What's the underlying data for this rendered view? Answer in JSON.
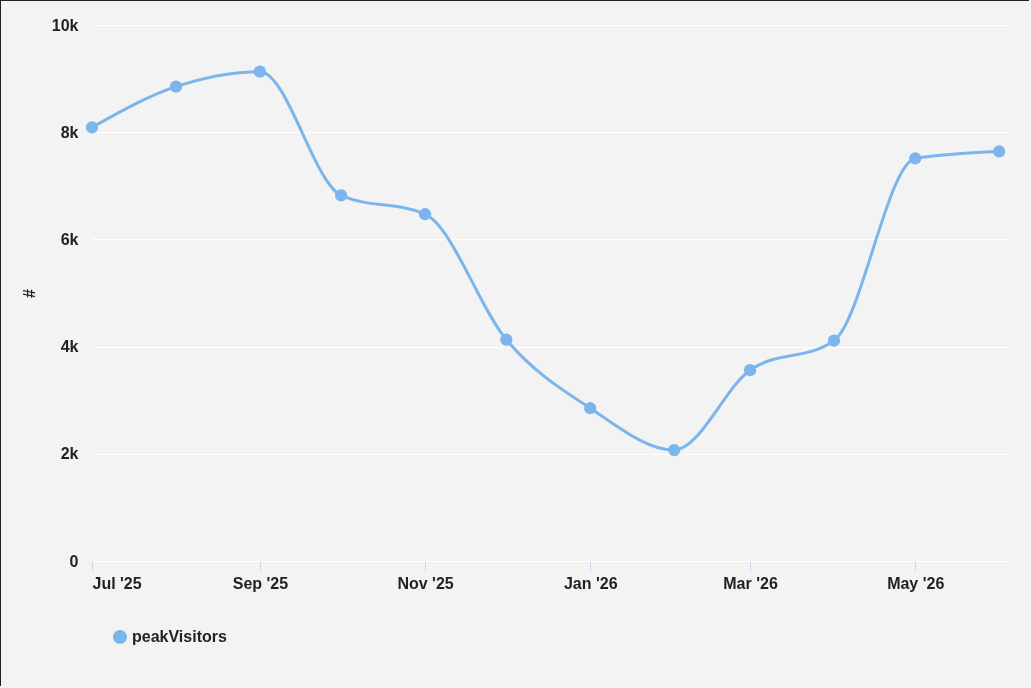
{
  "chart_data": {
    "type": "line",
    "ylabel": "#",
    "x": [
      "2025-07",
      "2025-08",
      "2025-09",
      "2025-10",
      "2025-11",
      "2025-12",
      "2026-01",
      "2026-02",
      "2026-03",
      "2026-04",
      "2026-05",
      "2026-06"
    ],
    "series": [
      {
        "name": "peakVisitors",
        "color": "#7cb5ec",
        "values": [
          8090,
          8850,
          9130,
          6820,
          6470,
          4130,
          2850,
          2070,
          3560,
          4110,
          7510,
          7640
        ]
      }
    ],
    "xlim": [
      "2025-07-01",
      "2026-06-05"
    ],
    "xticks": [
      {
        "value": "2025-07",
        "label": "Jul '25"
      },
      {
        "value": "2025-09",
        "label": "Sep '25"
      },
      {
        "value": "2025-11",
        "label": "Nov '25"
      },
      {
        "value": "2026-01",
        "label": "Jan '26"
      },
      {
        "value": "2026-03",
        "label": "Mar '26"
      },
      {
        "value": "2026-05",
        "label": "May '26"
      }
    ],
    "ylim": [
      0,
      10000
    ],
    "yticks": [
      0,
      {
        "value": 2000,
        "label": "2k"
      },
      {
        "value": 4000,
        "label": "4k"
      },
      {
        "value": 6000,
        "label": "6k"
      },
      {
        "value": 8000,
        "label": "8k"
      },
      {
        "value": 10000,
        "label": "10k"
      }
    ],
    "grid": "y",
    "legend": "bottom",
    "marker": "circle",
    "line_style": "solid"
  }
}
